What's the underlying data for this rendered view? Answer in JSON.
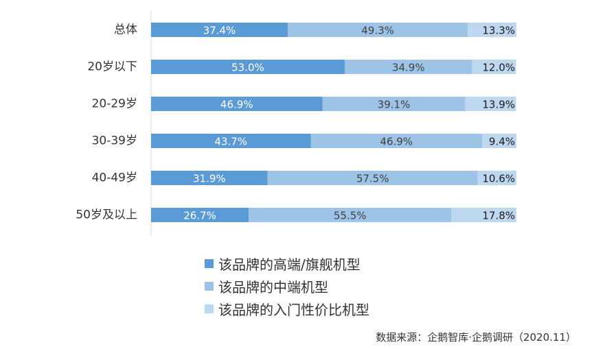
{
  "chart_data": {
    "type": "bar",
    "orientation": "horizontal",
    "stacked": true,
    "title": "",
    "xlabel": "",
    "ylabel": "",
    "xlim": [
      0,
      100
    ],
    "grid": false,
    "legend_position": "bottom",
    "categories": [
      "总体",
      "20岁以下",
      "20-29岁",
      "30-39岁",
      "40-49岁",
      "50岁及以上"
    ],
    "series": [
      {
        "name": "该品牌的高端/旗舰机型",
        "color": "#5b9bd5",
        "values": [
          37.4,
          53.0,
          46.9,
          43.7,
          31.9,
          26.7
        ],
        "labels": [
          "37.4%",
          "53.0%",
          "46.9%",
          "43.7%",
          "31.9%",
          "26.7%"
        ]
      },
      {
        "name": "该品牌的中端机型",
        "color": "#9dc3e6",
        "values": [
          49.3,
          34.9,
          39.1,
          46.9,
          57.5,
          55.5
        ],
        "labels": [
          "49.3%",
          "34.9%",
          "39.1%",
          "46.9%",
          "57.5%",
          "55.5%"
        ]
      },
      {
        "name": "该品牌的入门性价比机型",
        "color": "#bdd7ee",
        "values": [
          13.3,
          12.0,
          13.9,
          9.4,
          10.6,
          17.8
        ],
        "labels": [
          "13.3%",
          "12.0%",
          "13.9%",
          "9.4%",
          "10.6%",
          "17.8%"
        ]
      }
    ]
  },
  "source": "数据来源：企鹅智库·企鹅调研（2020.11）"
}
